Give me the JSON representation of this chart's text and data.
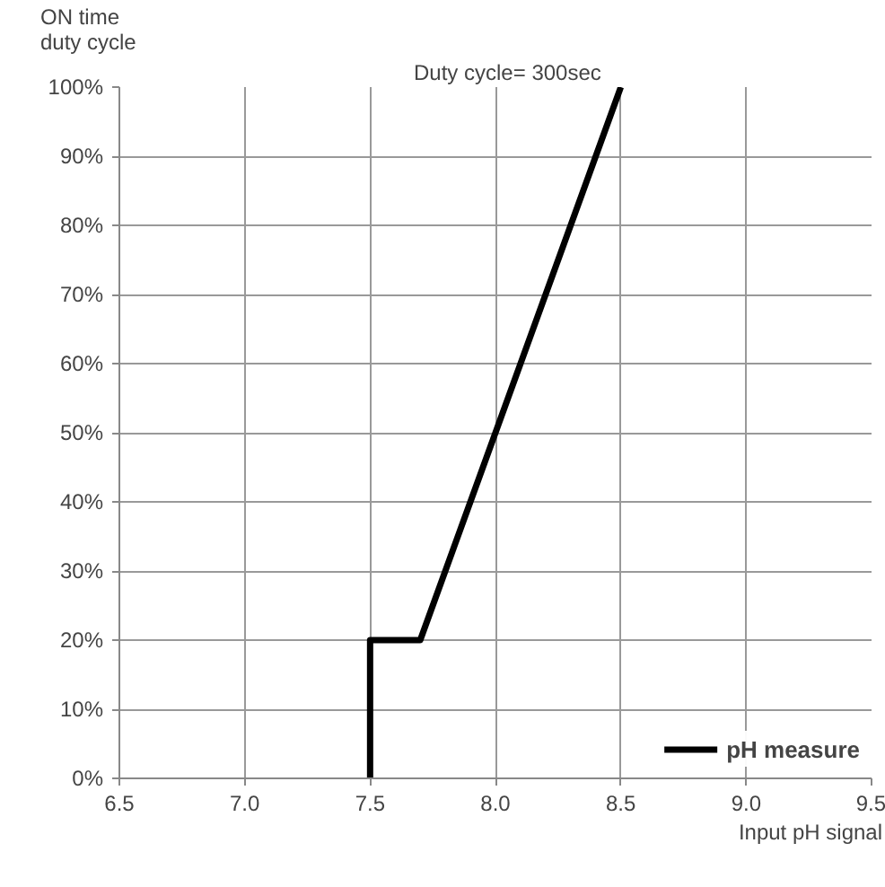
{
  "chart_data": {
    "type": "line",
    "ylabel": "ON time\nduty cycle",
    "xlabel": "Input pH signal",
    "annotations": [
      "Duty cycle= 300sec"
    ],
    "x": [
      7.5,
      7.5,
      7.7,
      8.5
    ],
    "series": [
      {
        "name": "pH measure",
        "color": "#000000",
        "values": [
          0,
          20,
          20,
          100
        ]
      }
    ],
    "xlim": [
      6.5,
      9.5
    ],
    "ylim": [
      0,
      100
    ],
    "xticks": [
      6.5,
      {
        "value": 7,
        "label": "7.0"
      },
      7.5,
      {
        "value": 8,
        "label": "8.0"
      },
      8.5,
      {
        "value": 9,
        "label": "9.0"
      },
      9.5
    ],
    "yticks": [
      {
        "value": 0,
        "label": "0%"
      },
      {
        "value": 10,
        "label": "10%"
      },
      {
        "value": 20,
        "label": "20%"
      },
      {
        "value": 30,
        "label": "30%"
      },
      {
        "value": 40,
        "label": "40%"
      },
      {
        "value": 50,
        "label": "50%"
      },
      {
        "value": 60,
        "label": "60%"
      },
      {
        "value": 70,
        "label": "70%"
      },
      {
        "value": 80,
        "label": "80%"
      },
      {
        "value": 90,
        "label": "90%"
      },
      {
        "value": 100,
        "label": "100%"
      }
    ],
    "grid": true,
    "legend": "bottom",
    "marker": "none",
    "line_style": "solid"
  }
}
